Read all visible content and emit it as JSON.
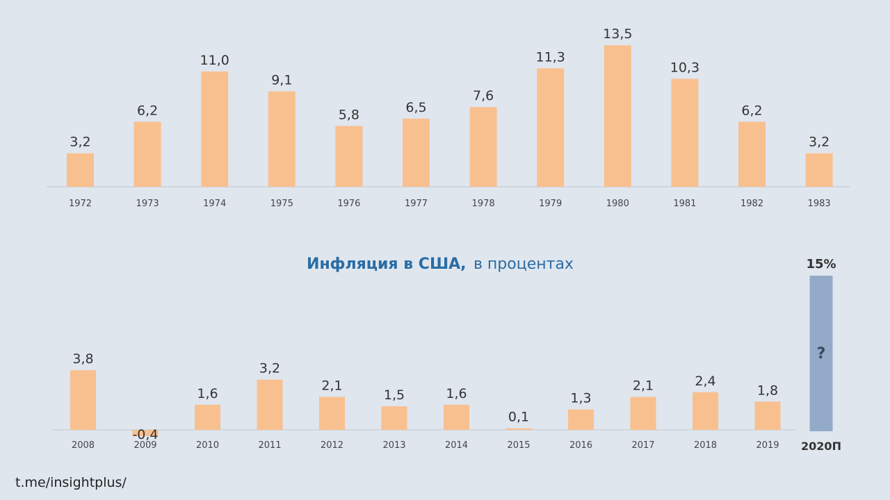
{
  "colors": {
    "bar": "#f9c08f",
    "forecast_bar": "#93aac8",
    "axis": "#cfd6de",
    "title": "#2b6ca3",
    "background": "#dfe6ee"
  },
  "chart_data": [
    {
      "type": "bar",
      "categories": [
        "1972",
        "1973",
        "1974",
        "1975",
        "1976",
        "1977",
        "1978",
        "1979",
        "1980",
        "1981",
        "1982",
        "1983"
      ],
      "values": [
        3.2,
        6.2,
        11.0,
        9.1,
        5.8,
        6.5,
        7.6,
        11.3,
        13.5,
        10.3,
        6.2,
        3.2
      ],
      "value_labels": [
        "3,2",
        "6,2",
        "11,0",
        "9,1",
        "5,8",
        "6,5",
        "7,6",
        "11,3",
        "13,5",
        "10,3",
        "6,2",
        "3,2"
      ],
      "ylim": [
        0,
        13.5
      ],
      "grid": false
    },
    {
      "type": "bar",
      "title": "Инфляция в США,",
      "subtitle": "в процентах",
      "categories": [
        "2008",
        "2009",
        "2010",
        "2011",
        "2012",
        "2013",
        "2014",
        "2015",
        "2016",
        "2017",
        "2018",
        "2019"
      ],
      "values": [
        3.8,
        -0.4,
        1.6,
        3.2,
        2.1,
        1.5,
        1.6,
        0.1,
        1.3,
        2.1,
        2.4,
        1.8
      ],
      "value_labels": [
        "3,8",
        "-0,4",
        "1,6",
        "3,2",
        "2,1",
        "1,5",
        "1,6",
        "0,1",
        "1,3",
        "2,1",
        "2,4",
        "1,8"
      ],
      "forecast": {
        "category": "2020П",
        "value": 15,
        "value_label": "15%",
        "mark": "?"
      },
      "grid": false
    }
  ],
  "footer": {
    "source": "t.me/insightplus/"
  }
}
